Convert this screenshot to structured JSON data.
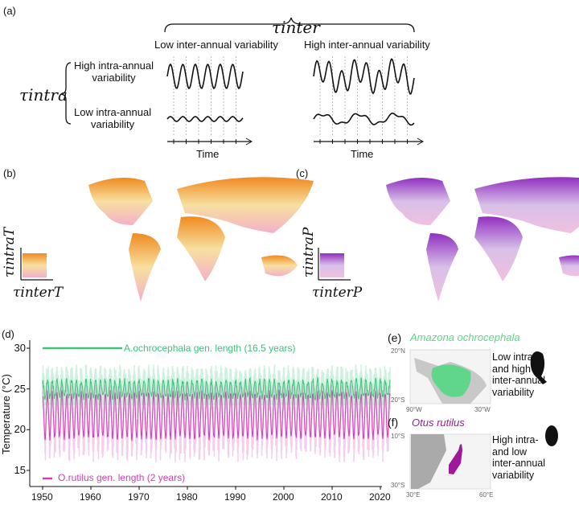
{
  "panel_a": {
    "label": "(a)",
    "tau_inter": "τinter",
    "tau_intra": "τintra",
    "col_low": "Low inter-annual variability",
    "col_high": "High inter-annual variability",
    "row_high": [
      "High intra-annual",
      "variability"
    ],
    "row_low": [
      "Low intra-annual",
      "variability"
    ],
    "time_label": "Time"
  },
  "panel_b": {
    "label": "(b)",
    "legend_y": "τintraT",
    "legend_x": "τinterT",
    "colors": [
      "#f7e0a0",
      "#f08a20",
      "#f4b0c8"
    ]
  },
  "panel_c": {
    "label": "(c)",
    "legend_y": "τintraP",
    "legend_x": "τinterP",
    "colors": [
      "#d8c0e8",
      "#9030c0",
      "#f0c0e0"
    ]
  },
  "chart_data": {
    "type": "line",
    "label": "(d)",
    "ylabel": "Temperature (°C)",
    "xlim": [
      1948,
      2022
    ],
    "ylim": [
      13,
      31
    ],
    "xticks": [
      1950,
      1960,
      1970,
      1980,
      1990,
      2000,
      2010,
      2020
    ],
    "yticks": [
      15,
      20,
      25,
      30
    ],
    "series": [
      {
        "name": "A.ochrocephala gen. length (16.5 years)",
        "color": "#3cc47a",
        "seasonal_high": 26,
        "seasonal_low": 24,
        "band_high": 28,
        "band_low": 23
      },
      {
        "name": "O.rutilus gen. length (2 years)",
        "color": "#d040b0",
        "seasonal_high": 24.5,
        "seasonal_low": 19,
        "band_high": 25.5,
        "band_low": 16
      }
    ]
  },
  "panel_e": {
    "label": "(e)",
    "species": "Amazona ochrocephala",
    "lat_ticks": [
      "20°N",
      "20°S"
    ],
    "lon_ticks": [
      "90°W",
      "30°W"
    ],
    "text": [
      "Low intra-",
      "and high",
      "inter-annual",
      "variability"
    ],
    "color": "#5fd68a"
  },
  "panel_f": {
    "label": "(f)",
    "species": "Otus rutilus",
    "lat_ticks": [
      "10°S",
      "30°S"
    ],
    "lon_ticks": [
      "30°E",
      "60°E"
    ],
    "text": [
      "High intra-",
      "and low",
      "inter-annual",
      "variability"
    ],
    "color": "#a0189a"
  }
}
